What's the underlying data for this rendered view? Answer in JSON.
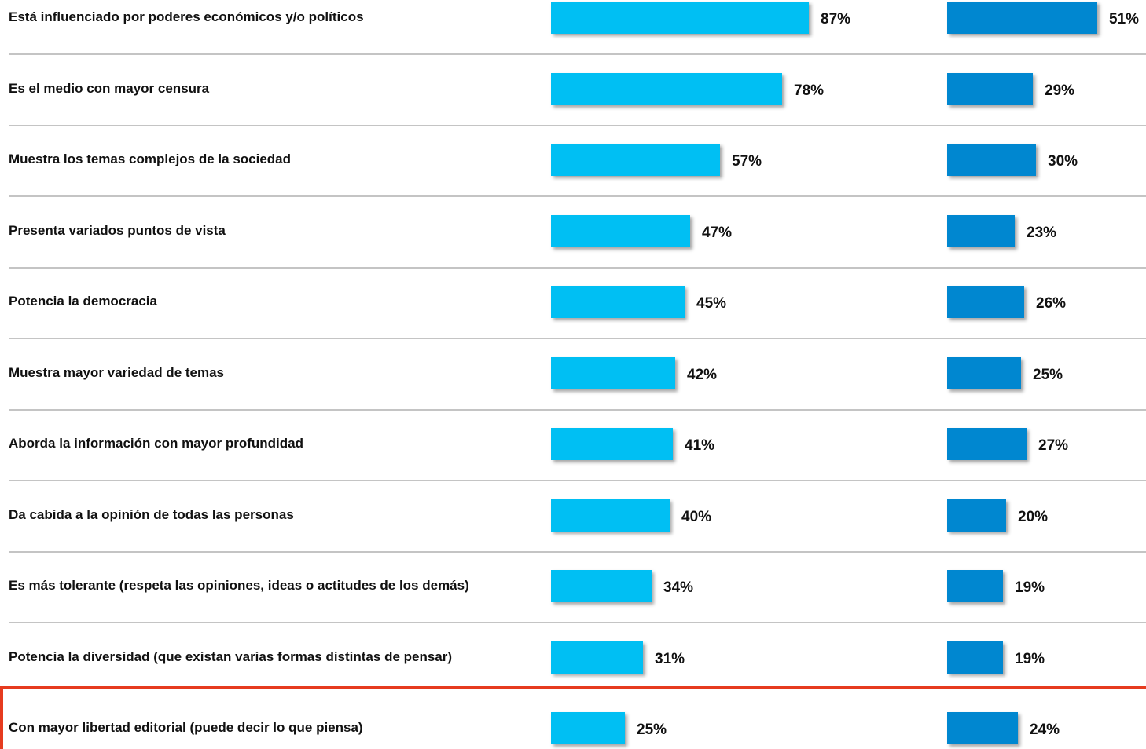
{
  "chart_data": {
    "type": "bar",
    "orientation": "horizontal",
    "categories": [
      "Está influenciado por poderes económicos y/o políticos",
      "Es el medio con mayor censura",
      "Muestra los temas complejos de la sociedad",
      "Presenta variados puntos de vista",
      "Potencia la democracia",
      "Muestra mayor variedad de temas",
      "Aborda la información con mayor profundidad",
      "Da cabida a la opinión de todas las personas",
      "Es más tolerante (respeta las opiniones, ideas o actitudes de los demás)",
      "Potencia la diversidad (que existan varias formas distintas de pensar)",
      "Con mayor libertad editorial (puede decir lo que piensa)"
    ],
    "series": [
      {
        "color": "#00bff3",
        "values": [
          87,
          78,
          57,
          47,
          45,
          42,
          41,
          40,
          34,
          31,
          25
        ],
        "labels": [
          "87%",
          "78%",
          "57%",
          "47%",
          "45%",
          "42%",
          "41%",
          "40%",
          "34%",
          "31%",
          "25%"
        ]
      },
      {
        "color": "#0087d0",
        "values": [
          51,
          29,
          30,
          23,
          26,
          25,
          27,
          20,
          19,
          19,
          24
        ],
        "labels": [
          "51%",
          "29%",
          "30%",
          "23%",
          "26%",
          "25%",
          "27%",
          "20%",
          "19%",
          "19%",
          "24%"
        ]
      }
    ],
    "unit": "%",
    "grid": false,
    "highlighted_category": "Con mayor libertad editorial (puede decir lo que piensa)",
    "highlight_color": "#e63b1f",
    "separator_color": "#c4c4c4"
  }
}
